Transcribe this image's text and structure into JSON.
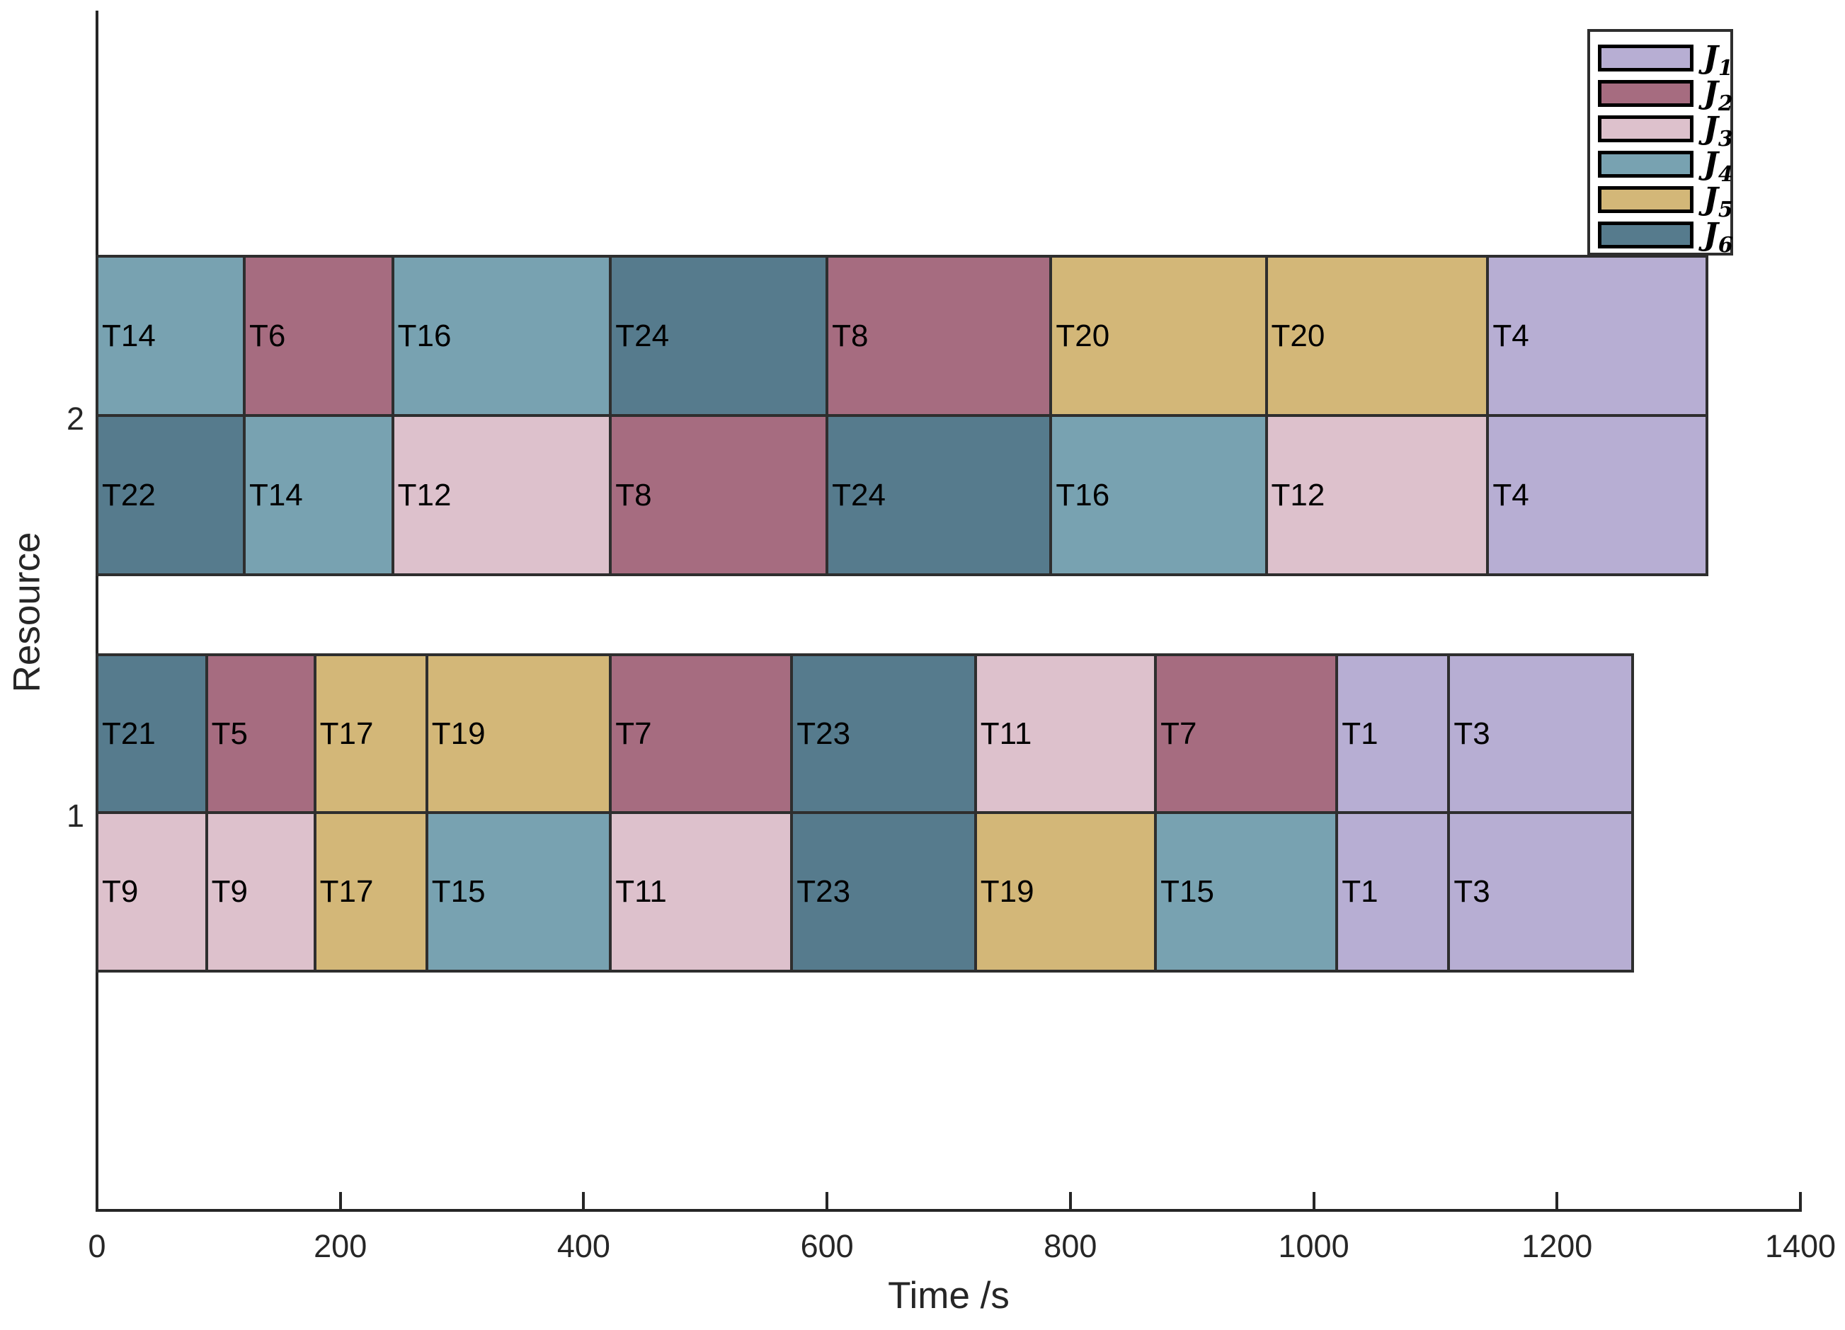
{
  "axes": {
    "xlabel": "Time /s",
    "ylabel": "Resource",
    "x_tick_labels": [
      "0",
      "200",
      "400",
      "600",
      "800",
      "1000",
      "1200",
      "1400"
    ],
    "y_tick_labels": [
      "1",
      "2"
    ]
  },
  "legend": {
    "entries": [
      {
        "name": "J",
        "sub": "1",
        "color": "#b7aed3"
      },
      {
        "name": "J",
        "sub": "2",
        "color": "#a66c80"
      },
      {
        "name": "J",
        "sub": "3",
        "color": "#ddc1cc"
      },
      {
        "name": "J",
        "sub": "4",
        "color": "#78a2b1"
      },
      {
        "name": "J",
        "sub": "5",
        "color": "#d3b778"
      },
      {
        "name": "J",
        "sub": "6",
        "color": "#567b8d"
      }
    ]
  },
  "chart_data": {
    "type": "gantt",
    "title": "",
    "xlabel": "Time /s",
    "ylabel": "Resource",
    "xlim": [
      0,
      1400
    ],
    "x_ticks": [
      0,
      200,
      400,
      600,
      800,
      1000,
      1200,
      1400
    ],
    "resources": [
      "1",
      "2"
    ],
    "jobs": {
      "J1": "#b7aed3",
      "J2": "#a66c80",
      "J3": "#ddc1cc",
      "J4": "#78a2b1",
      "J5": "#d3b778",
      "J6": "#567b8d"
    },
    "tasks": [
      {
        "label": "T14",
        "job": "J4",
        "resource": "2",
        "lane": "upper",
        "start": 0,
        "end": 121
      },
      {
        "label": "T6",
        "job": "J2",
        "resource": "2",
        "lane": "upper",
        "start": 121,
        "end": 243
      },
      {
        "label": "T16",
        "job": "J4",
        "resource": "2",
        "lane": "upper",
        "start": 243,
        "end": 422
      },
      {
        "label": "T24",
        "job": "J6",
        "resource": "2",
        "lane": "upper",
        "start": 422,
        "end": 600
      },
      {
        "label": "T8",
        "job": "J2",
        "resource": "2",
        "lane": "upper",
        "start": 600,
        "end": 784
      },
      {
        "label": "T20",
        "job": "J5",
        "resource": "2",
        "lane": "upper",
        "start": 784,
        "end": 961
      },
      {
        "label": "T20",
        "job": "J5",
        "resource": "2",
        "lane": "upper",
        "start": 961,
        "end": 1143
      },
      {
        "label": "T4",
        "job": "J1",
        "resource": "2",
        "lane": "upper",
        "start": 1143,
        "end": 1323
      },
      {
        "label": "T22",
        "job": "J6",
        "resource": "2",
        "lane": "lower",
        "start": 0,
        "end": 121
      },
      {
        "label": "T14",
        "job": "J4",
        "resource": "2",
        "lane": "lower",
        "start": 121,
        "end": 243
      },
      {
        "label": "T12",
        "job": "J3",
        "resource": "2",
        "lane": "lower",
        "start": 243,
        "end": 422
      },
      {
        "label": "T8",
        "job": "J2",
        "resource": "2",
        "lane": "lower",
        "start": 422,
        "end": 600
      },
      {
        "label": "T24",
        "job": "J6",
        "resource": "2",
        "lane": "lower",
        "start": 600,
        "end": 784
      },
      {
        "label": "T16",
        "job": "J4",
        "resource": "2",
        "lane": "lower",
        "start": 784,
        "end": 961
      },
      {
        "label": "T12",
        "job": "J3",
        "resource": "2",
        "lane": "lower",
        "start": 961,
        "end": 1143
      },
      {
        "label": "T4",
        "job": "J1",
        "resource": "2",
        "lane": "lower",
        "start": 1143,
        "end": 1323
      },
      {
        "label": "T21",
        "job": "J6",
        "resource": "1",
        "lane": "upper",
        "start": 0,
        "end": 90
      },
      {
        "label": "T5",
        "job": "J2",
        "resource": "1",
        "lane": "upper",
        "start": 90,
        "end": 179
      },
      {
        "label": "T17",
        "job": "J5",
        "resource": "1",
        "lane": "upper",
        "start": 179,
        "end": 271
      },
      {
        "label": "T19",
        "job": "J5",
        "resource": "1",
        "lane": "upper",
        "start": 271,
        "end": 422
      },
      {
        "label": "T7",
        "job": "J2",
        "resource": "1",
        "lane": "upper",
        "start": 422,
        "end": 571
      },
      {
        "label": "T23",
        "job": "J6",
        "resource": "1",
        "lane": "upper",
        "start": 571,
        "end": 722
      },
      {
        "label": "T11",
        "job": "J3",
        "resource": "1",
        "lane": "upper",
        "start": 722,
        "end": 870
      },
      {
        "label": "T7",
        "job": "J2",
        "resource": "1",
        "lane": "upper",
        "start": 870,
        "end": 1019
      },
      {
        "label": "T1",
        "job": "J1",
        "resource": "1",
        "lane": "upper",
        "start": 1019,
        "end": 1111
      },
      {
        "label": "T3",
        "job": "J1",
        "resource": "1",
        "lane": "upper",
        "start": 1111,
        "end": 1262
      },
      {
        "label": "T9",
        "job": "J3",
        "resource": "1",
        "lane": "lower",
        "start": 0,
        "end": 90
      },
      {
        "label": "T9",
        "job": "J3",
        "resource": "1",
        "lane": "lower",
        "start": 90,
        "end": 179
      },
      {
        "label": "T17",
        "job": "J5",
        "resource": "1",
        "lane": "lower",
        "start": 179,
        "end": 271
      },
      {
        "label": "T15",
        "job": "J4",
        "resource": "1",
        "lane": "lower",
        "start": 271,
        "end": 422
      },
      {
        "label": "T11",
        "job": "J3",
        "resource": "1",
        "lane": "lower",
        "start": 422,
        "end": 571
      },
      {
        "label": "T23",
        "job": "J6",
        "resource": "1",
        "lane": "lower",
        "start": 571,
        "end": 722
      },
      {
        "label": "T19",
        "job": "J5",
        "resource": "1",
        "lane": "lower",
        "start": 722,
        "end": 870
      },
      {
        "label": "T15",
        "job": "J4",
        "resource": "1",
        "lane": "lower",
        "start": 870,
        "end": 1019
      },
      {
        "label": "T1",
        "job": "J1",
        "resource": "1",
        "lane": "lower",
        "start": 1019,
        "end": 1111
      },
      {
        "label": "T3",
        "job": "J1",
        "resource": "1",
        "lane": "lower",
        "start": 1111,
        "end": 1262
      }
    ]
  }
}
